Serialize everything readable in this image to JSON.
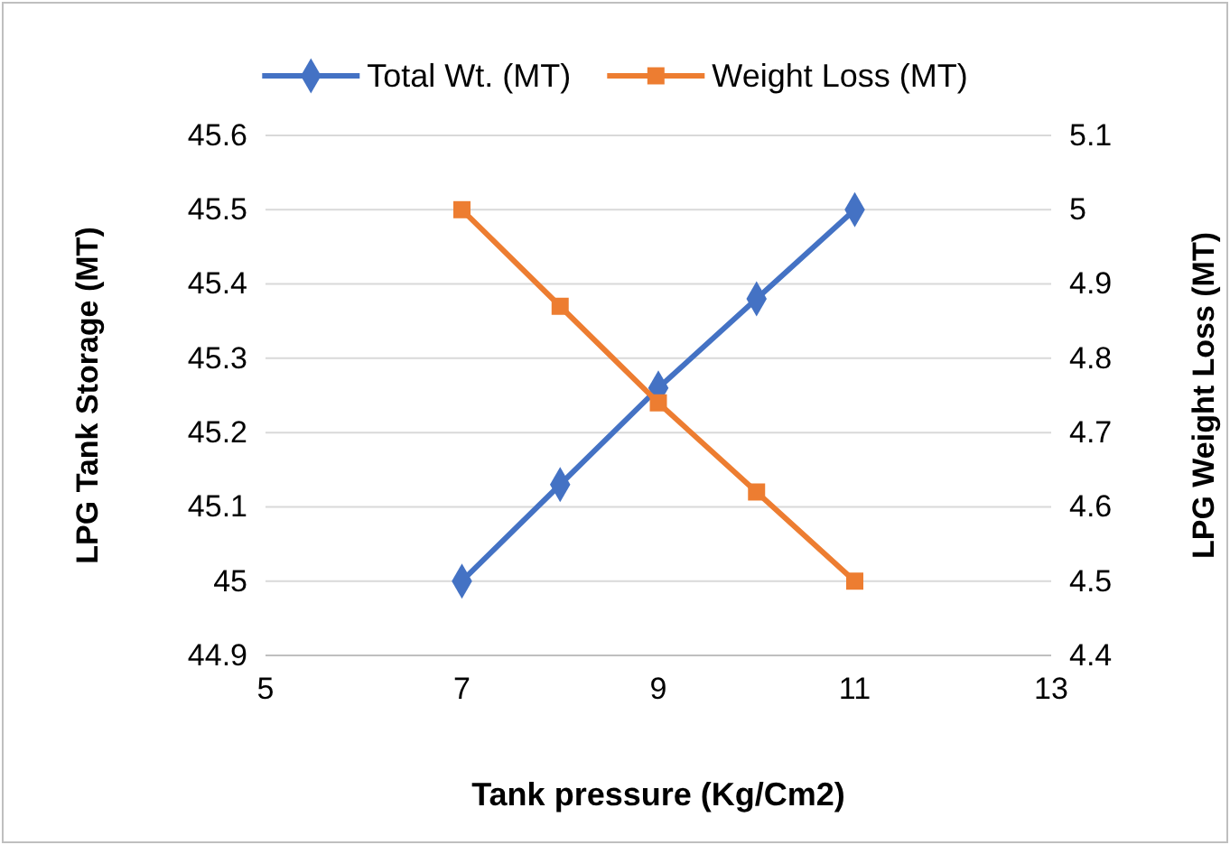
{
  "chart_data": {
    "type": "line",
    "xlabel": "Tank pressure (Kg/Cm2)",
    "ylabel": "LPG Tank Storage (MT)",
    "y2label": "LPG Weight Loss (MT)",
    "x": [
      7,
      8,
      9,
      10,
      11
    ],
    "series": [
      {
        "name": "Total Wt. (MT)",
        "color": "#4472c4",
        "marker": "diamond",
        "values": [
          45,
          45.13,
          45.26,
          45.38,
          45.5
        ]
      },
      {
        "name": "Weight Loss (MT)",
        "color": "#ed7d31",
        "marker": "square",
        "axis": "y2",
        "values": [
          5,
          4.87,
          4.74,
          4.62,
          4.5
        ]
      }
    ],
    "xlim": [
      5,
      13
    ],
    "xticks": [
      5,
      7,
      9,
      11,
      13
    ],
    "ylim": [
      44.9,
      45.6
    ],
    "yticks": [
      {
        "value": 44.9,
        "label": "44.9"
      },
      {
        "value": 45,
        "label": "45"
      },
      {
        "value": 45.1,
        "label": "45.1"
      },
      {
        "value": 45.2,
        "label": "45.2"
      },
      {
        "value": 45.3,
        "label": "45.3"
      },
      {
        "value": 45.4,
        "label": "45.4"
      },
      {
        "value": 45.5,
        "label": "45.5"
      },
      {
        "value": 45.6,
        "label": "45.6"
      }
    ],
    "y2lim": [
      4.4,
      5.1
    ],
    "y2ticks": [
      {
        "value": 4.4,
        "label": "4.4"
      },
      {
        "value": 4.5,
        "label": "4.5"
      },
      {
        "value": 4.6,
        "label": "4.6"
      },
      {
        "value": 4.7,
        "label": "4.7"
      },
      {
        "value": 4.8,
        "label": "4.8"
      },
      {
        "value": 4.9,
        "label": "4.9"
      },
      {
        "value": 5,
        "label": "5"
      },
      {
        "value": 5.1,
        "label": "5.1"
      }
    ],
    "grid": "y",
    "legend": "top",
    "line_style": "solid"
  }
}
